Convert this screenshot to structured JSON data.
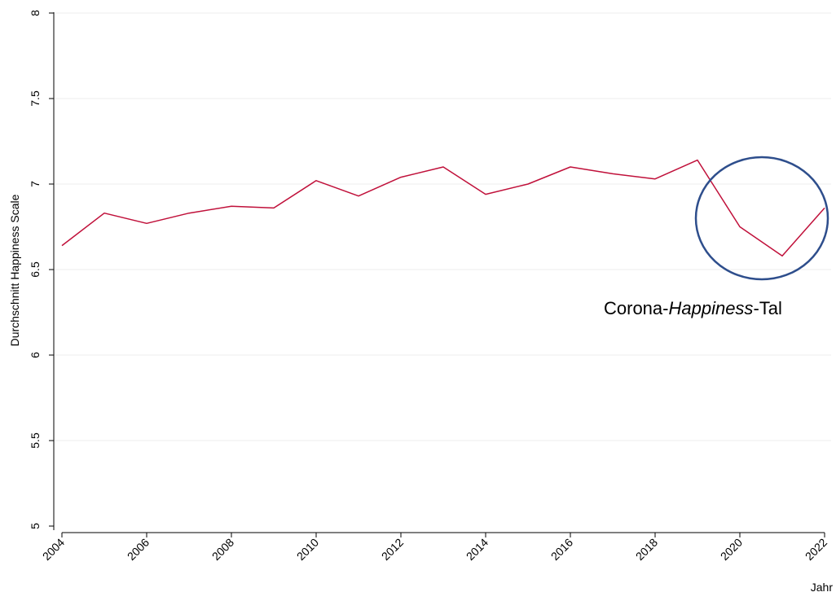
{
  "chart_data": {
    "type": "line",
    "title": "",
    "xlabel": "Jahr",
    "ylabel": "Durchschnitt Happiness Scale",
    "xlim": [
      2004,
      2022
    ],
    "ylim": [
      5,
      8
    ],
    "x_ticks": [
      2004,
      2006,
      2008,
      2010,
      2012,
      2014,
      2016,
      2018,
      2020,
      2022
    ],
    "x_tick_labels": [
      "2004",
      "2006",
      "2008",
      "2010",
      "2012",
      "2014",
      "2016",
      "2018",
      "2020",
      "2022"
    ],
    "y_ticks": [
      5,
      5.5,
      6,
      6.5,
      7,
      7.5,
      8
    ],
    "y_tick_labels": [
      "5",
      "5.5",
      "6",
      "6.5",
      "7",
      "7.5",
      "8"
    ],
    "grid": true,
    "series": [
      {
        "x": [
          2004,
          2005,
          2006,
          2007,
          2008,
          2009,
          2010,
          2011,
          2012,
          2013,
          2014,
          2015,
          2016,
          2017,
          2018,
          2019,
          2020,
          2021,
          2022
        ],
        "values": [
          6.64,
          6.83,
          6.77,
          6.83,
          6.87,
          6.86,
          7.02,
          6.93,
          7.04,
          7.1,
          6.94,
          7.0,
          7.1,
          7.06,
          7.03,
          7.14,
          6.75,
          6.58,
          6.86
        ],
        "color": "#c0103a"
      }
    ],
    "annotation": {
      "text_before": "Corona-",
      "text_italic": "Happiness",
      "text_after": "-Tal",
      "circle_color": "#2e4e8c"
    }
  }
}
